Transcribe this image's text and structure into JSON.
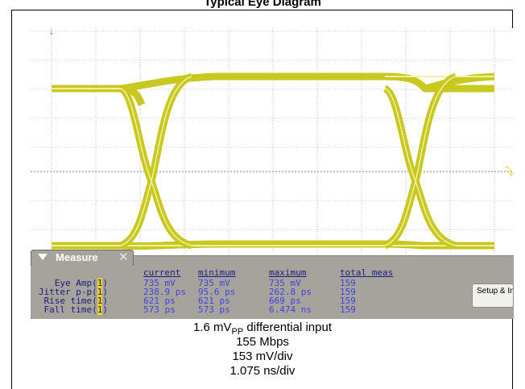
{
  "figure_title": "Typical Eye Diagram",
  "measure": {
    "tab_label": "Measure",
    "headers": [
      "current",
      "minimum",
      "maximum",
      "total meas"
    ],
    "rows": [
      {
        "label": "Eye Amp(",
        "source": "1",
        "close": ")",
        "current": "735 mV",
        "minimum": "735 mV",
        "maximum": "735 mV",
        "total": "159"
      },
      {
        "label": "Jitter p-p(",
        "source": "1",
        "close": ")",
        "current": "238.9 ps",
        "minimum": "95.6 ps",
        "maximum": "262.8 ps",
        "total": "159"
      },
      {
        "label": "Rise time(",
        "source": "1",
        "close": ")",
        "current": "621 ps",
        "minimum": "621 ps",
        "maximum": "669 ps",
        "total": "159"
      },
      {
        "label": "Fall time(",
        "source": "1",
        "close": ")",
        "current": "573 ps",
        "minimum": "573 ps",
        "maximum": "6.474 ns",
        "total": "159"
      }
    ],
    "setup_button": "Setup & Info"
  },
  "caption": {
    "input_prefix": "1.6 mV",
    "input_sub": "PP",
    "input_suffix": " differential input",
    "rate": "155 Mbps",
    "vertical": "153 mV/div",
    "horizontal": "1.075 ns/div"
  },
  "colors": {
    "trace": "#c8c820",
    "trace_light": "#f0f0a0",
    "panel": "#a6a39d",
    "measure_text": "#1b1b80",
    "value_text": "#4242e0"
  }
}
